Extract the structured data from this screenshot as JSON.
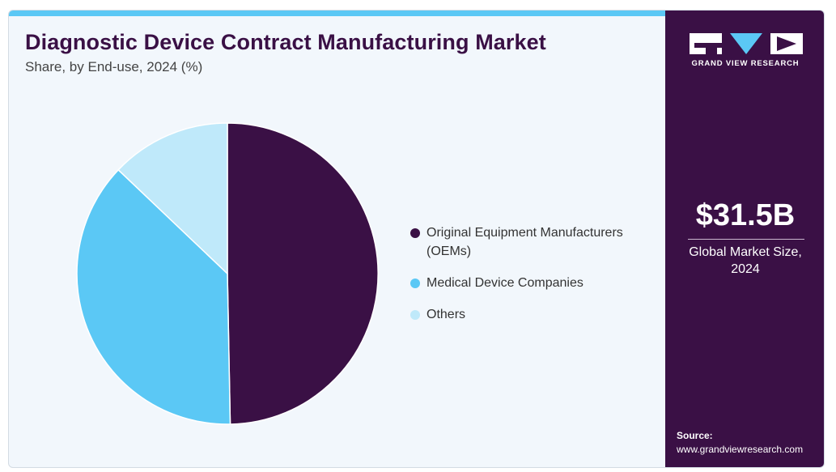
{
  "chart_data": {
    "type": "pie",
    "title": "Diagnostic Device Contract Manufacturing Market",
    "subtitle": "Share, by End-use, 2024 (%)",
    "categories": [
      "Original Equipment Manufacturers (OEMs)",
      "Medical Device Companies",
      "Others"
    ],
    "values": [
      49.7,
      37.4,
      12.9
    ],
    "colors": [
      "#3a1045",
      "#5bc8f5",
      "#bfe9fa"
    ],
    "legend_position": "right"
  },
  "legend": [
    {
      "label": "Original Equipment Manufacturers (OEMs)",
      "color": "#3a1045"
    },
    {
      "label": "Medical Device Companies",
      "color": "#5bc8f5"
    },
    {
      "label": "Others",
      "color": "#bfe9fa"
    }
  ],
  "sidebar": {
    "brand": "GRAND VIEW RESEARCH",
    "market_size": "$31.5B",
    "market_label": "Global Market Size, 2024",
    "source_label": "Source:",
    "source_url": "www.grandviewresearch.com"
  },
  "colors": {
    "accent_bar": "#5bc8f5",
    "panel": "#3a1045",
    "background": "#f2f7fc"
  }
}
